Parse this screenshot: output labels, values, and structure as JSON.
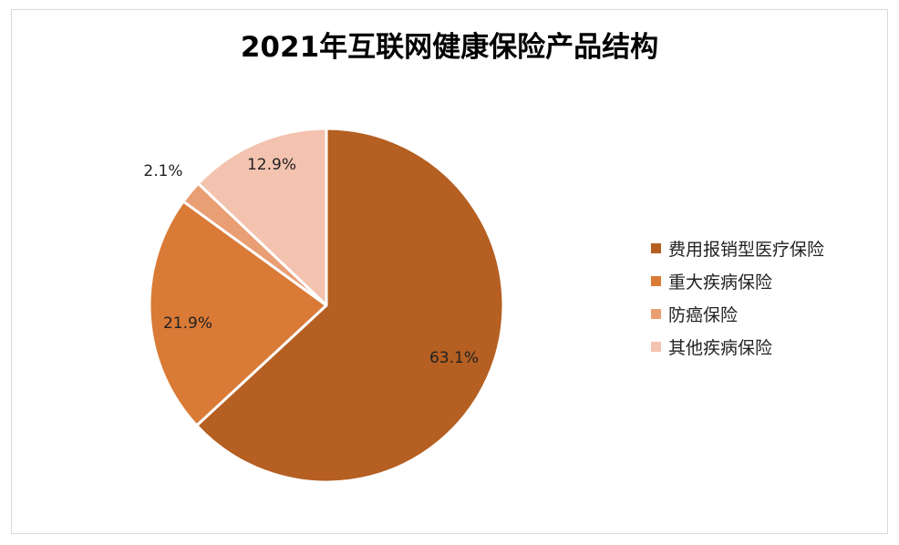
{
  "chart_data": {
    "type": "pie",
    "title": "2021年互联网健康保险产品结构",
    "unit": "%",
    "legend_position": "right",
    "slices": [
      {
        "name": "费用报销型医疗保险",
        "value": 63.1,
        "label": "63.1%",
        "color": "#B55F22"
      },
      {
        "name": "重大疾病保险",
        "value": 21.9,
        "label": "21.9%",
        "color": "#D97A36"
      },
      {
        "name": "防癌保险",
        "value": 2.1,
        "label": "2.1%",
        "color": "#EA9E74"
      },
      {
        "name": "其他疾病保险",
        "value": 12.9,
        "label": "12.9%",
        "color": "#F3C3AF"
      }
    ]
  }
}
